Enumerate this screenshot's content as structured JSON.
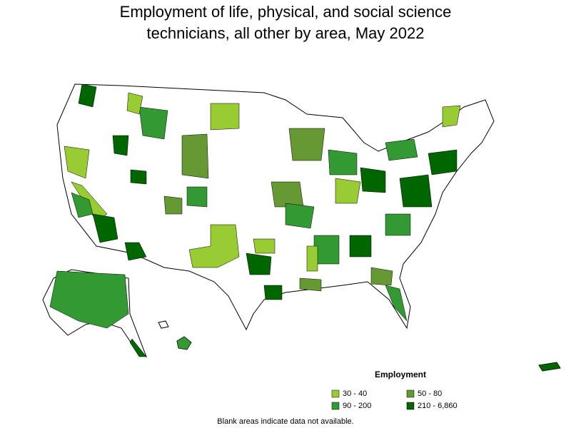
{
  "title": "Employment of life, physical, and social science technicians, all other by area, May 2022",
  "legend": {
    "title": "Employment",
    "items": [
      {
        "label": "30 - 40",
        "color": "#99cc33"
      },
      {
        "label": "50 - 80",
        "color": "#669933"
      },
      {
        "label": "90 - 200",
        "color": "#339933"
      },
      {
        "label": "210 - 6,860",
        "color": "#006600"
      }
    ]
  },
  "note": "Blank areas indicate data not available."
}
